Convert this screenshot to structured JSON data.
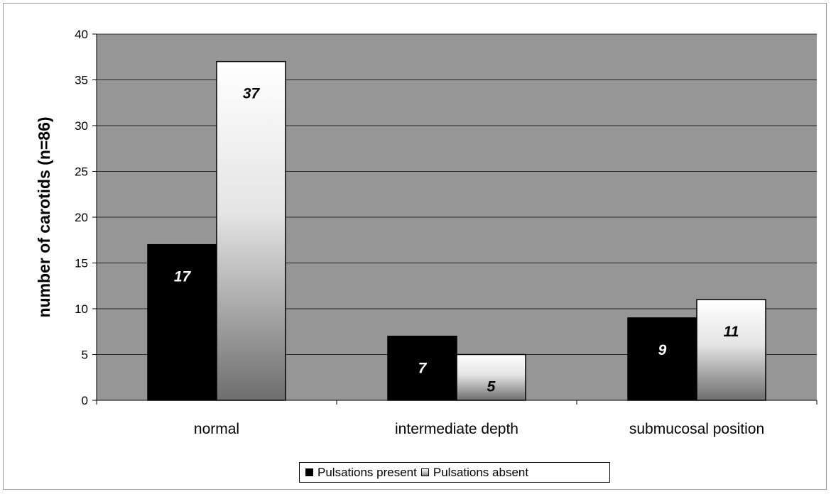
{
  "chart_data": {
    "type": "bar",
    "title": "",
    "xlabel": "",
    "ylabel": "number of carotids (n=86)",
    "ylim": [
      0,
      40
    ],
    "yticks": [
      0,
      5,
      10,
      15,
      20,
      25,
      30,
      35,
      40
    ],
    "categories": [
      "normal",
      "intermediate depth",
      "submucosal position"
    ],
    "series": [
      {
        "name": "Pulsations present",
        "values": [
          17,
          7,
          9
        ],
        "color": "#000000",
        "label_color": "#ffffff",
        "fill": "solid"
      },
      {
        "name": "Pulsations absent",
        "values": [
          37,
          5,
          11
        ],
        "color": "#ffffff",
        "label_color": "#000000",
        "fill": "gradient white to grey"
      }
    ],
    "data_labels": [
      [
        "17",
        "7",
        "9"
      ],
      [
        "37",
        "5",
        "11"
      ]
    ],
    "grid": true,
    "plot_background": "#969696",
    "legend_position": "bottom"
  }
}
